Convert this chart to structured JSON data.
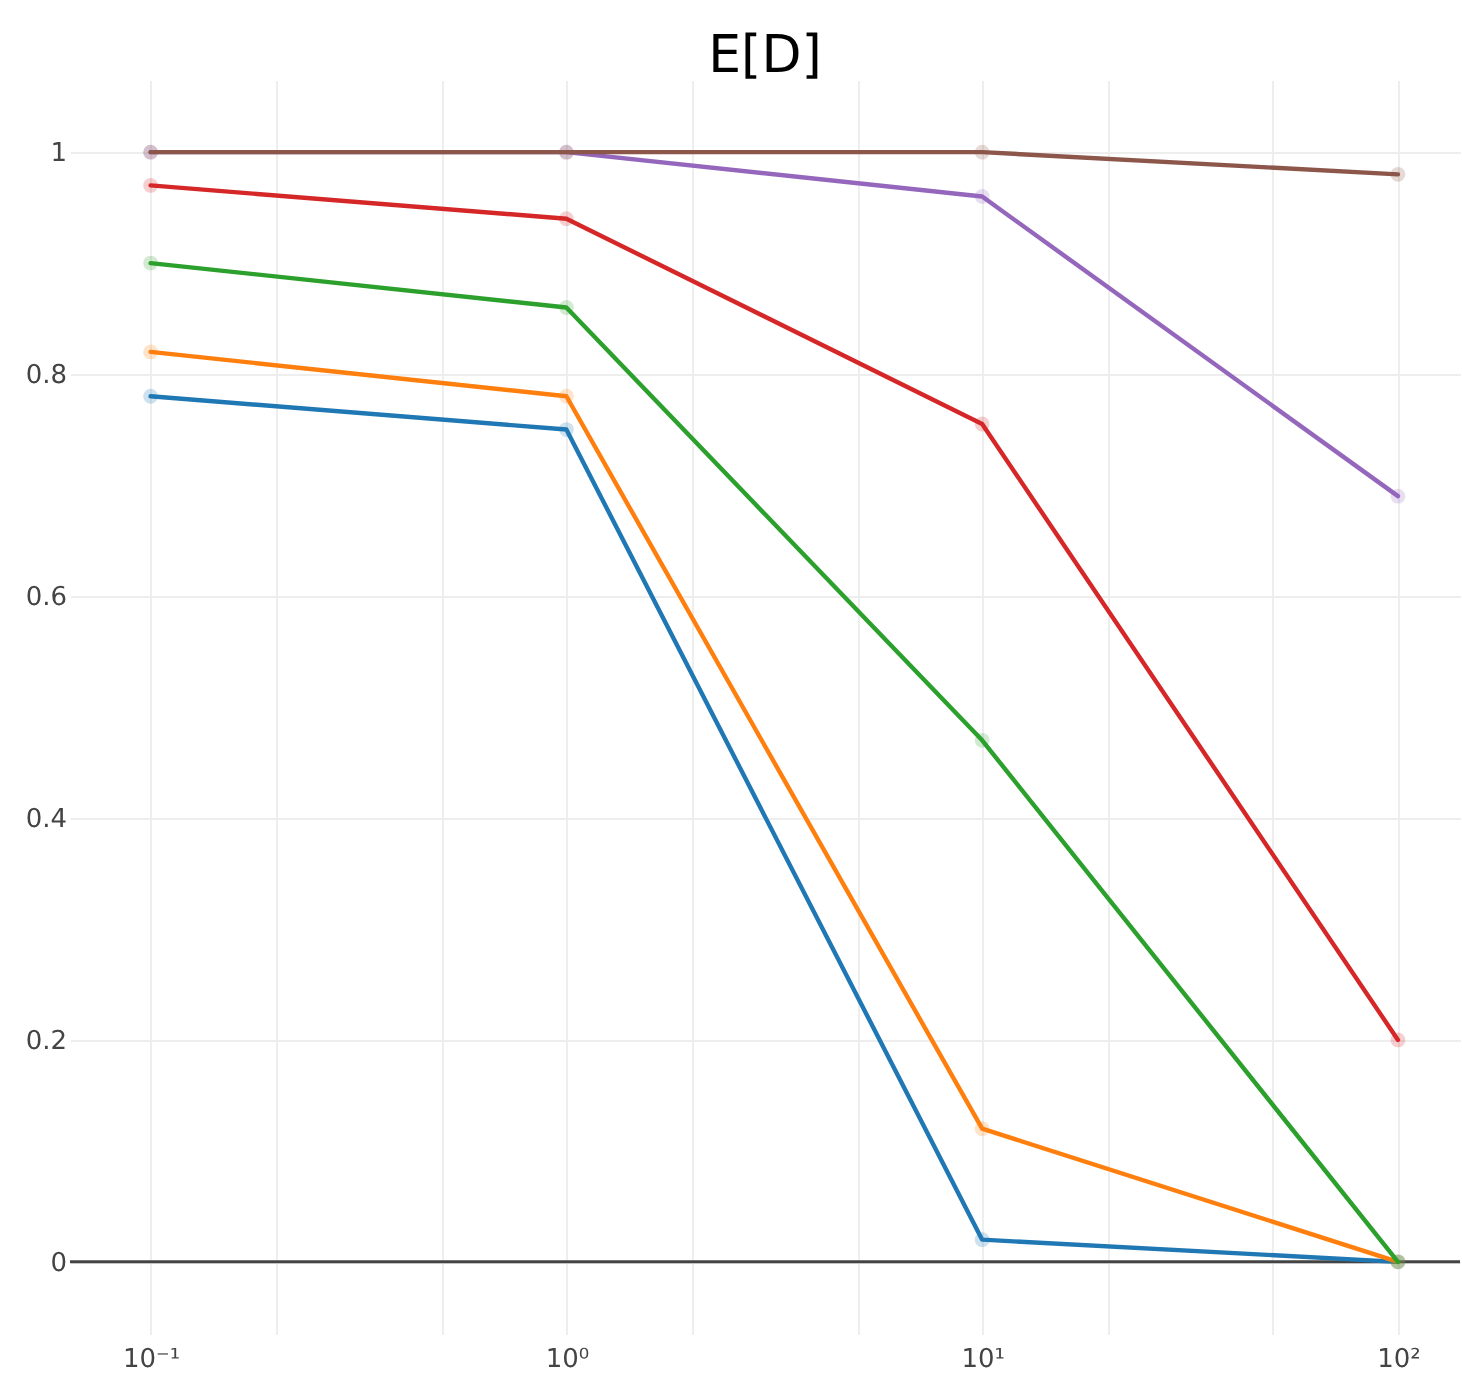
{
  "chart_data": {
    "type": "line",
    "title": "E[D]",
    "x": [
      0.1,
      1,
      10,
      100
    ],
    "series": [
      {
        "color": "#1f77b4",
        "values": [
          0.78,
          0.75,
          0.02,
          0
        ]
      },
      {
        "color": "#ff7f0e",
        "values": [
          0.82,
          0.78,
          0.12,
          0
        ]
      },
      {
        "color": "#2ca02c",
        "values": [
          0.9,
          0.86,
          0.47,
          0
        ]
      },
      {
        "color": "#d62728",
        "values": [
          0.97,
          0.94,
          0.755,
          0.2
        ]
      },
      {
        "color": "#9467bd",
        "values": [
          1,
          1,
          0.96,
          0.69
        ]
      },
      {
        "color": "#8c564b",
        "values": [
          1,
          1,
          1,
          0.98
        ]
      }
    ],
    "log": "x",
    "xlim": [
      0.064,
      141
    ],
    "xticks": [
      {
        "value": 0.1,
        "label": "10⁻¹"
      },
      {
        "value": 0.2,
        "label": null
      },
      {
        "value": 0.5,
        "label": null
      },
      {
        "value": 1,
        "label": "10⁰"
      },
      {
        "value": 2,
        "label": null
      },
      {
        "value": 5,
        "label": null
      },
      {
        "value": 10,
        "label": "10¹"
      },
      {
        "value": 20,
        "label": null
      },
      {
        "value": 50,
        "label": null
      },
      {
        "value": 100,
        "label": "10²"
      }
    ],
    "ylim": [
      -0.065,
      1.065
    ],
    "yticks": [
      0,
      0.2,
      0.4,
      0.6,
      0.8,
      1
    ],
    "ref_lines": [
      {
        "axis": "y",
        "value": 0,
        "color": "#444444"
      }
    ],
    "grid": true,
    "marker": "circle",
    "line_style": "solid"
  }
}
